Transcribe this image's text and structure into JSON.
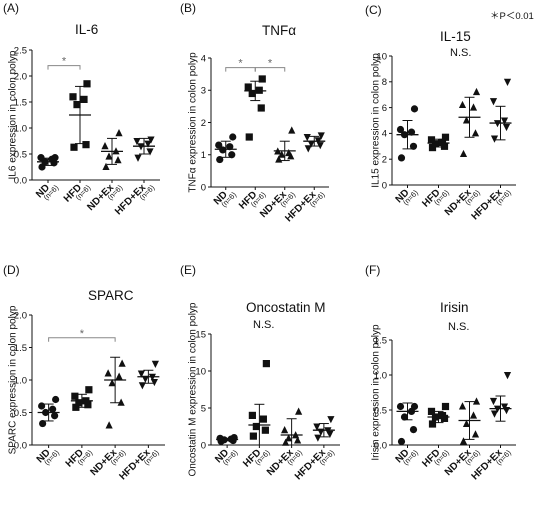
{
  "significance_note": "＊P＜0.01",
  "chart_data": [
    {
      "panel": "(A)",
      "type": "scatter",
      "title": "IL-6",
      "note": "",
      "ylabel": "IL6 expression in colon polyp",
      "ylim": [
        0,
        2.5
      ],
      "yticks": [
        "0.0",
        "0.5",
        "1.0",
        "1.5",
        "2.0",
        "2.5"
      ],
      "categories": [
        "ND",
        "HFD",
        "ND+Ex",
        "HFD+Ex"
      ],
      "n_labels": [
        "(n=6)",
        "(n=6)",
        "(n=6)",
        "(n=6)"
      ],
      "markers": [
        "circle",
        "square",
        "triangle-up",
        "triangle-down"
      ],
      "points": [
        [
          0.25,
          0.33,
          0.35,
          0.4,
          0.43,
          0.43
        ],
        [
          0.63,
          0.68,
          1.45,
          1.55,
          1.6,
          1.85
        ],
        [
          0.25,
          0.38,
          0.45,
          0.55,
          0.65,
          0.9
        ],
        [
          0.43,
          0.55,
          0.65,
          0.7,
          0.75,
          0.78
        ]
      ],
      "mean": [
        0.35,
        1.25,
        0.55,
        0.65
      ],
      "sd": [
        0.07,
        0.55,
        0.25,
        0.15
      ],
      "brackets": [
        {
          "from": 0,
          "to": 1,
          "y": 2.2,
          "label": "*"
        }
      ]
    },
    {
      "panel": "(B)",
      "type": "scatter",
      "title": "TNFα",
      "note": "",
      "ylabel": "TNFα expression in colon polyp",
      "ylim": [
        0,
        4
      ],
      "yticks": [
        "0",
        "1",
        "2",
        "3",
        "4"
      ],
      "categories": [
        "ND",
        "HFD",
        "ND+Ex",
        "HFD+Ex"
      ],
      "n_labels": [
        "(n=6)",
        "(n=6)",
        "(n=6)",
        "(n=6)"
      ],
      "markers": [
        "circle",
        "square",
        "triangle-up",
        "triangle-down"
      ],
      "points": [
        [
          0.85,
          1.0,
          1.15,
          1.25,
          1.3,
          1.55
        ],
        [
          1.55,
          2.45,
          2.9,
          3.0,
          3.1,
          3.35
        ],
        [
          0.85,
          0.95,
          1.0,
          1.05,
          1.1,
          1.75
        ],
        [
          1.2,
          1.3,
          1.35,
          1.45,
          1.55,
          1.6
        ]
      ],
      "mean": [
        1.17,
        2.98,
        1.12,
        1.42
      ],
      "sd": [
        0.25,
        0.3,
        0.3,
        0.15
      ],
      "brackets": [
        {
          "from": 0,
          "to": 1,
          "y": 3.7,
          "label": "*"
        },
        {
          "from": 1,
          "to": 2,
          "y": 3.7,
          "label": "*"
        }
      ]
    },
    {
      "panel": "(C)",
      "type": "scatter",
      "title": "IL-15",
      "note": "N.S.",
      "ylabel": "IL15 expression in colon polyp",
      "ylim": [
        0,
        10
      ],
      "yticks": [
        "0",
        "2",
        "4",
        "6",
        "8",
        "10"
      ],
      "categories": [
        "ND",
        "HFD",
        "ND+Ex",
        "HFD+Ex"
      ],
      "n_labels": [
        "(n=6)",
        "(n=6)",
        "(n=6)",
        "(n=6)"
      ],
      "markers": [
        "circle",
        "square",
        "triangle-up",
        "triangle-down"
      ],
      "points": [
        [
          2.1,
          3.0,
          3.9,
          4.1,
          4.3,
          5.9
        ],
        [
          2.9,
          3.0,
          3.2,
          3.3,
          3.5,
          3.7
        ],
        [
          2.4,
          4.0,
          5.0,
          6.0,
          6.2,
          7.2
        ],
        [
          3.6,
          4.5,
          4.8,
          5.0,
          6.5,
          8.0
        ]
      ],
      "mean": [
        3.9,
        3.25,
        5.25,
        4.8
      ],
      "sd": [
        1.1,
        0.3,
        1.55,
        1.3
      ],
      "brackets": []
    },
    {
      "panel": "(D)",
      "type": "scatter",
      "title": "SPARC",
      "note": "",
      "ylabel": "SPARC expression in colon polyp",
      "ylim": [
        0,
        2
      ],
      "yticks": [
        "0.0",
        "0.5",
        "1.0",
        "1.5",
        "2.0"
      ],
      "categories": [
        "ND",
        "HFD",
        "ND+Ex",
        "HFD+Ex"
      ],
      "n_labels": [
        "(n=6)",
        "(n=6)",
        "(n=6)",
        "(n=6)"
      ],
      "markers": [
        "circle",
        "square",
        "triangle-up",
        "triangle-down"
      ],
      "points": [
        [
          0.33,
          0.45,
          0.5,
          0.55,
          0.6,
          0.7
        ],
        [
          0.58,
          0.62,
          0.65,
          0.68,
          0.75,
          0.85
        ],
        [
          0.3,
          0.65,
          0.95,
          1.05,
          1.1,
          1.25
        ],
        [
          0.92,
          0.97,
          1.02,
          1.05,
          1.1,
          1.25
        ]
      ],
      "mean": [
        0.5,
        0.68,
        1.0,
        1.05
      ],
      "sd": [
        0.13,
        0.1,
        0.35,
        0.1
      ],
      "brackets": [
        {
          "from": 0,
          "to": 2,
          "y": 1.65,
          "label": "*"
        }
      ]
    },
    {
      "panel": "(E)",
      "type": "scatter",
      "title": "Oncostatin M",
      "note": "N.S.",
      "ylabel": "Oncostatin M  expression in colon polyp",
      "ylim": [
        0,
        15
      ],
      "yticks": [
        "0",
        "5",
        "10",
        "15"
      ],
      "categories": [
        "ND",
        "HFD",
        "ND+Ex",
        "HFD+Ex"
      ],
      "n_labels": [
        "(n=6)",
        "(n=6)",
        "(n=6)",
        "(n=6)"
      ],
      "markers": [
        "circle",
        "square",
        "triangle-up",
        "triangle-down"
      ],
      "points": [
        [
          0.5,
          0.6,
          0.7,
          0.8,
          0.9,
          1.0
        ],
        [
          1.2,
          2.0,
          2.5,
          3.5,
          4.0,
          11.0
        ],
        [
          0.3,
          0.6,
          0.9,
          1.3,
          2.0,
          4.5
        ],
        [
          1.0,
          1.5,
          1.8,
          2.0,
          2.5,
          3.5
        ]
      ],
      "mean": [
        0.75,
        2.7,
        1.35,
        2.0
      ],
      "sd": [
        0.15,
        2.8,
        2.2,
        0.9
      ],
      "brackets": []
    },
    {
      "panel": "(F)",
      "type": "scatter",
      "title": "Irisin",
      "note": "N.S.",
      "ylabel": "Irisin  expression in colon polyp",
      "ylim": [
        0,
        1.5
      ],
      "yticks": [
        "0.0",
        "0.5",
        "1.0",
        "1.5"
      ],
      "categories": [
        "ND",
        "HFD",
        "ND+Ex",
        "HFD+Ex"
      ],
      "n_labels": [
        "(n=6)",
        "(n=6)",
        "(n=6)",
        "(n=6)"
      ],
      "markers": [
        "circle",
        "square",
        "triangle-up",
        "triangle-down"
      ],
      "points": [
        [
          0.05,
          0.22,
          0.4,
          0.48,
          0.55,
          0.55
        ],
        [
          0.3,
          0.38,
          0.4,
          0.42,
          0.48,
          0.55
        ],
        [
          0.05,
          0.15,
          0.3,
          0.42,
          0.55,
          0.62
        ],
        [
          0.45,
          0.5,
          0.52,
          0.55,
          0.63,
          1.0
        ]
      ],
      "mean": [
        0.48,
        0.4,
        0.35,
        0.52
      ],
      "sd": [
        0.12,
        0.08,
        0.27,
        0.18
      ],
      "brackets": []
    }
  ]
}
